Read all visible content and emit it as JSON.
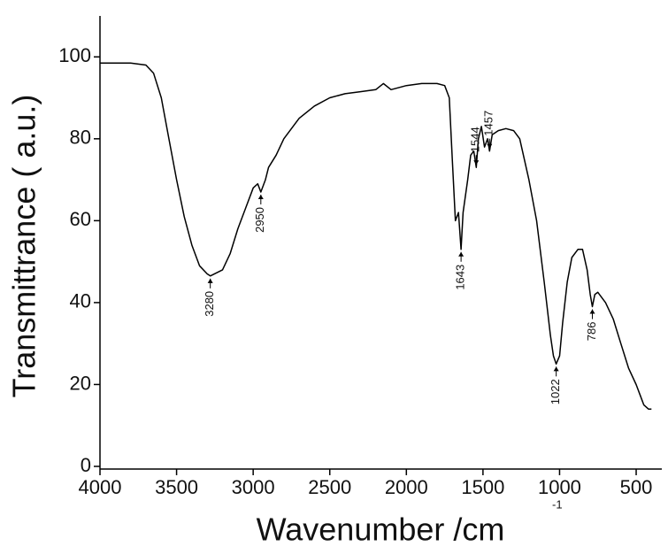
{
  "chart_data": {
    "type": "line",
    "xlabel": "Wavenumber /cm",
    "xlabel_superscript": "-1",
    "ylabel": "Transmittrance  ( a.u.)",
    "xlim": [
      4000,
      350
    ],
    "ylim": [
      0,
      110
    ],
    "xticks": [
      4000,
      3500,
      3000,
      2500,
      2000,
      1500,
      1000,
      500
    ],
    "yticks": [
      0,
      20,
      40,
      60,
      80,
      100
    ],
    "grid": false,
    "series": [
      {
        "color": "#000000",
        "x": [
          4000,
          3800,
          3700,
          3650,
          3600,
          3550,
          3500,
          3450,
          3400,
          3350,
          3300,
          3280,
          3200,
          3150,
          3100,
          3050,
          3000,
          2970,
          2950,
          2920,
          2900,
          2850,
          2800,
          2700,
          2600,
          2500,
          2400,
          2300,
          2200,
          2150,
          2100,
          2000,
          1900,
          1800,
          1750,
          1720,
          1700,
          1680,
          1660,
          1643,
          1630,
          1600,
          1580,
          1560,
          1544,
          1530,
          1510,
          1490,
          1470,
          1457,
          1440,
          1400,
          1350,
          1300,
          1260,
          1200,
          1150,
          1100,
          1060,
          1040,
          1022,
          1000,
          980,
          950,
          920,
          880,
          850,
          820,
          800,
          786,
          770,
          750,
          700,
          650,
          600,
          550,
          500,
          470,
          450,
          420,
          400
        ],
        "values": [
          98.5,
          98.5,
          98,
          96,
          90,
          80,
          70,
          61,
          54,
          49,
          47,
          46.5,
          48,
          52,
          58,
          63,
          68,
          69,
          67,
          70,
          73,
          76,
          80,
          85,
          88,
          90,
          91,
          91.5,
          92,
          93.5,
          92,
          93,
          93.5,
          93.5,
          93,
          90,
          75,
          60,
          62,
          53,
          62,
          70,
          76,
          77,
          73,
          80,
          83,
          78,
          80,
          77,
          81,
          82,
          82.5,
          82,
          80,
          70,
          60,
          45,
          32,
          27,
          25,
          27,
          35,
          45,
          51,
          53,
          53,
          48,
          42,
          39,
          42,
          42.5,
          40,
          36,
          30,
          24,
          20,
          17,
          15,
          14,
          14
        ]
      }
    ],
    "annotations": [
      {
        "label": "3280",
        "x": 3280,
        "y": 46.5,
        "position": "below"
      },
      {
        "label": "2950",
        "x": 2950,
        "y": 67,
        "position": "below"
      },
      {
        "label": "1643",
        "x": 1643,
        "y": 53,
        "position": "below"
      },
      {
        "label": "1544",
        "x": 1544,
        "y": 73,
        "position": "above"
      },
      {
        "label": "1457",
        "x": 1457,
        "y": 77,
        "position": "above"
      },
      {
        "label": "1022",
        "x": 1022,
        "y": 25,
        "position": "below"
      },
      {
        "label": "786",
        "x": 786,
        "y": 39,
        "position": "below"
      }
    ]
  }
}
